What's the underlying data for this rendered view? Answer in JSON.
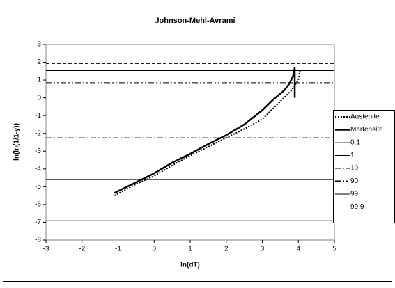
{
  "chart_data": {
    "type": "line",
    "title": "Johnson-Mehl-Avrami",
    "x_label": "ln(dT)",
    "y_label": "ln(ln(1/1-y))",
    "xlim": [
      -3,
      5
    ],
    "xticks": [
      -3,
      -2,
      -1,
      0,
      1,
      2,
      3,
      4,
      5
    ],
    "ylim": [
      -8,
      3
    ],
    "yticks": [
      -8,
      -7,
      -6,
      -5,
      -4,
      -3,
      -2,
      -1,
      0,
      1,
      2,
      3
    ],
    "legend": "right",
    "series": [
      {
        "name": "Austenite",
        "color": "#000000",
        "dash": "dotted",
        "x": [
          -1.1,
          -0.5,
          0,
          0.5,
          1,
          1.5,
          2,
          2.5,
          3,
          3.3,
          3.6,
          3.8,
          4,
          4.05
        ],
        "values": [
          -5.5,
          -4.85,
          -4.4,
          -3.8,
          -3.25,
          -2.75,
          -2.25,
          -1.75,
          -1.2,
          -0.6,
          0.0,
          0.4,
          1.0,
          1.6
        ]
      },
      {
        "name": "Martensite",
        "color": "#000000",
        "dash": "solid",
        "x": [
          -1.1,
          -0.5,
          0,
          0.5,
          1,
          1.5,
          2,
          2.5,
          3,
          3.3,
          3.6,
          3.75,
          3.85,
          3.9,
          3.9
        ],
        "values": [
          -5.35,
          -4.75,
          -4.25,
          -3.65,
          -3.15,
          -2.6,
          -2.1,
          -1.5,
          -0.7,
          -0.1,
          0.4,
          0.8,
          1.2,
          1.7,
          0.0
        ]
      }
    ],
    "reference_lines": [
      {
        "name": "0.1",
        "value": -6.91,
        "color": "#000000",
        "dash": "thin"
      },
      {
        "name": "1",
        "value": -4.6,
        "color": "#000000",
        "dash": "solid"
      },
      {
        "name": "10",
        "value": -2.25,
        "color": "#000000",
        "dash": "dashdot"
      },
      {
        "name": "90",
        "value": 0.83,
        "color": "#000000",
        "dash": "dashdotdot"
      },
      {
        "name": "99",
        "value": 1.53,
        "color": "#000000",
        "dash": "solid"
      },
      {
        "name": "99.9",
        "value": 1.93,
        "color": "#000000",
        "dash": "dashed"
      }
    ]
  }
}
